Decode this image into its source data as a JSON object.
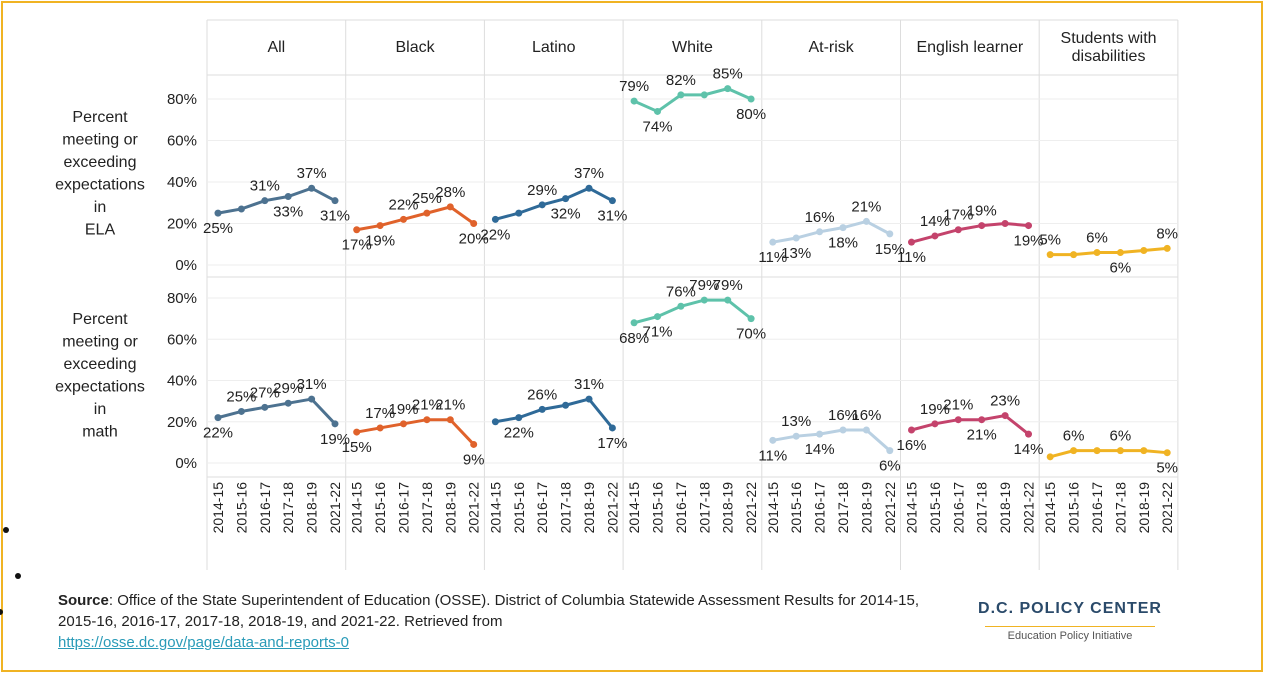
{
  "chart_data": {
    "type": "line",
    "groups": [
      "All",
      "Black",
      "Latino",
      "White",
      "At-risk",
      "English learner",
      "Students with disabilities"
    ],
    "colors": [
      "#4d7290",
      "#e0622b",
      "#2f6a98",
      "#5ec2aa",
      "#b9d0e2",
      "#c4436c",
      "#f0b323"
    ],
    "categories": [
      "2014-15",
      "2015-16",
      "2016-17",
      "2017-18",
      "2018-19",
      "2021-22"
    ],
    "ylim": [
      0,
      80
    ],
    "yticks": [
      {
        "value": 0,
        "label": "0%"
      },
      {
        "value": 20,
        "label": "20%"
      },
      {
        "value": 40,
        "label": "40%"
      },
      {
        "value": 60,
        "label": "60%"
      },
      {
        "value": 80,
        "label": "80%"
      }
    ],
    "grid": true,
    "rows": [
      {
        "label_lines": [
          "Percent",
          "meeting or",
          "exceeding",
          "expectations",
          "in",
          "ELA"
        ],
        "values": [
          [
            25,
            27,
            31,
            33,
            37,
            31
          ],
          [
            17,
            19,
            22,
            25,
            28,
            20
          ],
          [
            22,
            25,
            29,
            32,
            37,
            31
          ],
          [
            79,
            74,
            82,
            82,
            85,
            80
          ],
          [
            11,
            13,
            16,
            18,
            21,
            15
          ],
          [
            11,
            14,
            17,
            19,
            20,
            19
          ],
          [
            5,
            5,
            6,
            6,
            7,
            8
          ]
        ],
        "value_labels": [
          [
            "25%",
            null,
            "31%",
            "33%",
            "37%",
            "31%"
          ],
          [
            "17%",
            "19%",
            "22%",
            "25%",
            "28%",
            "20%"
          ],
          [
            "22%",
            null,
            "29%",
            "32%",
            "37%",
            "31%"
          ],
          [
            "79%",
            "74%",
            "82%",
            null,
            "85%",
            "80%"
          ],
          [
            "11%",
            "13%",
            "16%",
            "18%",
            "21%",
            "15%"
          ],
          [
            "11%",
            "14%",
            "17%",
            "19%",
            null,
            "19%"
          ],
          [
            "5%",
            null,
            "6%",
            "6%",
            null,
            "8%"
          ]
        ]
      },
      {
        "label_lines": [
          "Percent",
          "meeting or",
          "exceeding",
          "expectations",
          "in",
          "math"
        ],
        "values": [
          [
            22,
            25,
            27,
            29,
            31,
            19
          ],
          [
            15,
            17,
            19,
            21,
            21,
            9
          ],
          [
            20,
            22,
            26,
            28,
            31,
            17
          ],
          [
            68,
            71,
            76,
            79,
            79,
            70
          ],
          [
            11,
            13,
            14,
            16,
            16,
            6
          ],
          [
            16,
            19,
            21,
            21,
            23,
            14
          ],
          [
            3,
            6,
            6,
            6,
            6,
            5
          ]
        ],
        "value_labels": [
          [
            "22%",
            "25%",
            "27%",
            "29%",
            "31%",
            "19%"
          ],
          [
            "15%",
            "17%",
            "19%",
            "21%",
            "21%",
            "9%"
          ],
          [
            null,
            "22%",
            "26%",
            null,
            "31%",
            "17%"
          ],
          [
            "68%",
            "71%",
            "76%",
            "79%",
            "79%",
            "70%"
          ],
          [
            "11%",
            "13%",
            "14%",
            "16%",
            "16%",
            "6%"
          ],
          [
            "16%",
            "19%",
            "21%",
            "21%",
            "23%",
            "14%"
          ],
          [
            null,
            "6%",
            null,
            "6%",
            null,
            "5%"
          ]
        ]
      }
    ]
  },
  "source": {
    "label": "Source",
    "text": ": Office of the State Superintendent of Education (OSSE). District of Columbia Statewide Assessment Results for 2014-15, 2015-16, 2016-17, 2017-18, 2018-19, and 2021-22. Retrieved from",
    "link": "https://osse.dc.gov/page/data-and-reports-0"
  },
  "logo": {
    "name": "D.C. POLICY CENTER",
    "tagline": "Education Policy Initiative"
  }
}
